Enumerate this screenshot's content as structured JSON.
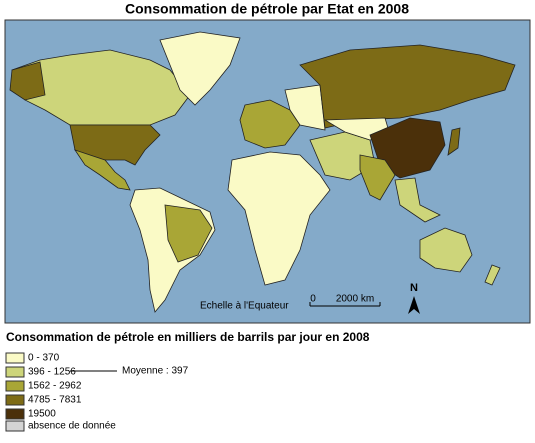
{
  "title": "Consommation de pétrole par Etat en 2008",
  "map": {
    "scale_label": "Echelle à l'Equateur",
    "scale_start": "0",
    "scale_end": "2000 km",
    "north": "N"
  },
  "legend": {
    "title": "Consommation de pétrole en milliers de barrils par jour en 2008",
    "items": [
      {
        "label": "0 - 370",
        "color": "#fafac6"
      },
      {
        "label": "396 - 1256",
        "color": "#cdd57a"
      },
      {
        "label": "1562 - 2962",
        "color": "#a9a636"
      },
      {
        "label": "4785 - 7831",
        "color": "#7d6b16"
      },
      {
        "label": "19500",
        "color": "#4b300a"
      }
    ],
    "mean": "Moyenne : 397",
    "no_data": {
      "label": "absence de donnée",
      "color": "#d4d4d4"
    }
  }
}
